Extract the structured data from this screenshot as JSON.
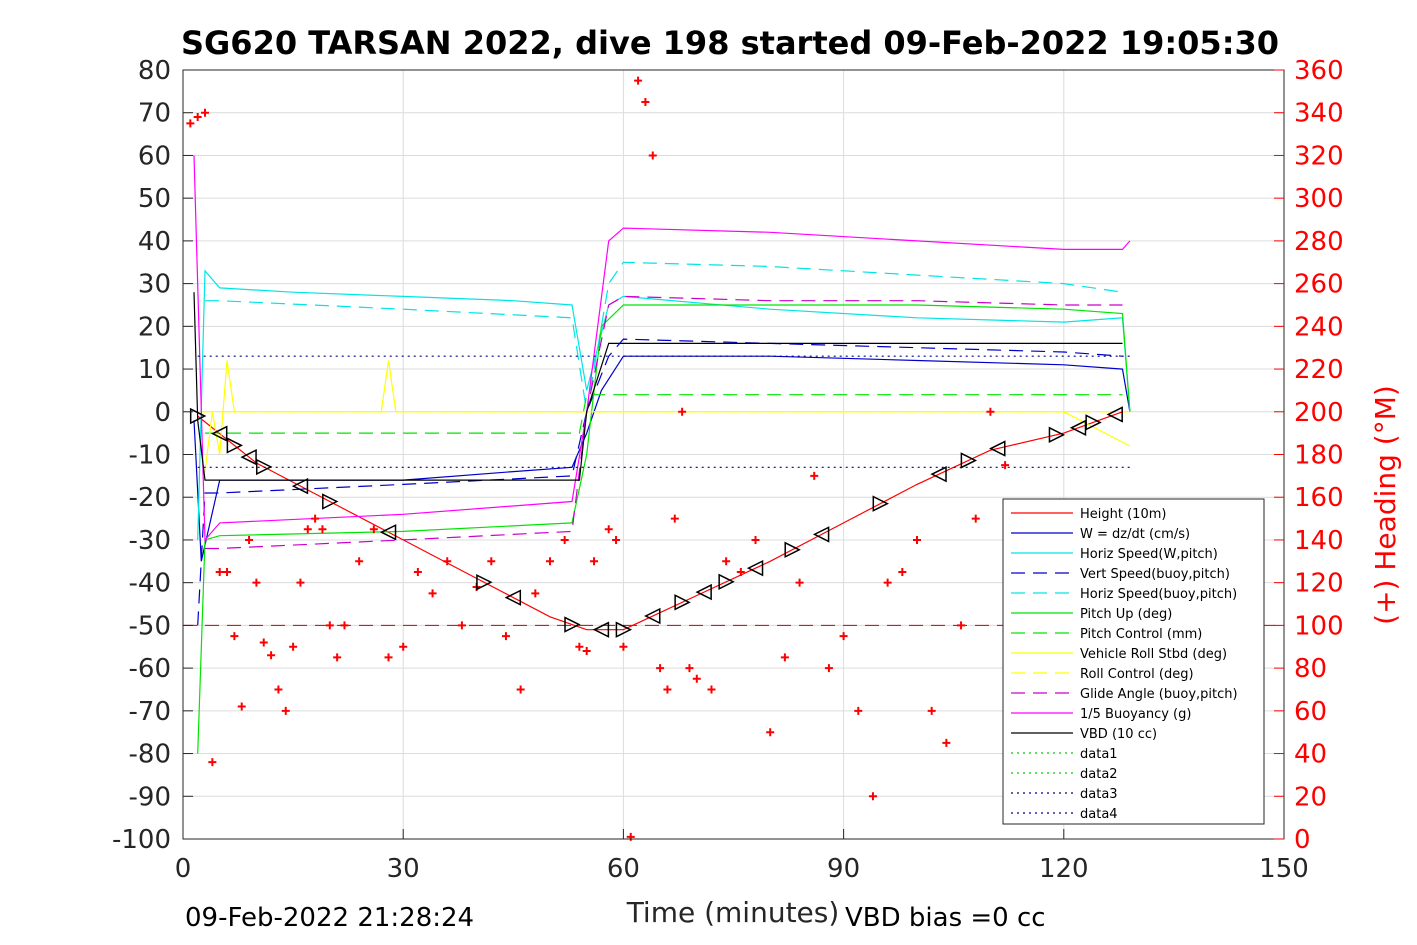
{
  "chart_data": {
    "type": "line",
    "title": "SG620 TARSAN 2022, dive 198 started 09-Feb-2022 19:05:30",
    "xlabel": "Time (minutes)",
    "ylabel_right": "(+) Heading (°M)",
    "xlim": [
      0,
      150
    ],
    "ylim": [
      -100,
      80
    ],
    "ylim_right": [
      0,
      360
    ],
    "x_ticks": [
      "0",
      "30",
      "60",
      "90",
      "120",
      "150"
    ],
    "y_ticks": [
      "80",
      "70",
      "60",
      "50",
      "40",
      "30",
      "20",
      "10",
      "0",
      "-10",
      "-20",
      "-30",
      "-40",
      "-50",
      "-60",
      "-70",
      "-80",
      "-90",
      "-100"
    ],
    "y_right_ticks": [
      "360",
      "340",
      "320",
      "300",
      "280",
      "260",
      "240",
      "220",
      "200",
      "180",
      "160",
      "140",
      "120",
      "100",
      "80",
      "60",
      "40",
      "20",
      "0"
    ],
    "grid": true,
    "legend_position": "bottom-right",
    "footer_left": "09-Feb-2022 21:28:24",
    "footer_right": "VBD bias =0 cc",
    "series": [
      {
        "name": "Height (10m)",
        "color": "#ff0000",
        "style": "solid",
        "x": [
          2,
          10,
          20,
          30,
          40,
          50,
          55,
          60,
          70,
          80,
          90,
          100,
          110,
          120,
          128
        ],
        "y": [
          -1,
          -12,
          -21,
          -30,
          -39,
          -48,
          -51,
          -51,
          -43,
          -35,
          -26,
          -17,
          -9,
          -5,
          0
        ]
      },
      {
        "name": "W = dz/dt (cm/s)",
        "color": "#0000cc",
        "style": "solid",
        "x": [
          1.5,
          2.5,
          5,
          15,
          30,
          45,
          53,
          55,
          57,
          60,
          80,
          100,
          120,
          128,
          129
        ],
        "y": [
          -2,
          -35,
          -16,
          -16,
          -16,
          -14,
          -13,
          -5,
          5,
          13,
          13,
          12,
          11,
          10,
          0
        ]
      },
      {
        "name": "Horiz Speed(W,pitch)",
        "color": "#00e5e5",
        "style": "solid",
        "x": [
          2,
          3,
          5,
          15,
          30,
          45,
          53,
          55,
          58,
          60,
          80,
          100,
          120,
          128,
          129
        ],
        "y": [
          -30,
          33,
          29,
          28,
          27,
          26,
          25,
          5,
          25,
          27,
          24,
          22,
          21,
          22,
          0
        ]
      },
      {
        "name": "Vert Speed(buoy,pitch)",
        "color": "#0000cc",
        "style": "dashed",
        "x": [
          2,
          3,
          5,
          30,
          53,
          55,
          58,
          60,
          80,
          100,
          120,
          128
        ],
        "y": [
          -50,
          -19,
          -19,
          -17,
          -15,
          0,
          13,
          17,
          16,
          15,
          14,
          13
        ]
      },
      {
        "name": "Horiz Speed(buoy,pitch)",
        "color": "#00e5e5",
        "style": "dashed",
        "x": [
          3,
          5,
          30,
          53,
          55,
          58,
          60,
          80,
          100,
          120,
          128
        ],
        "y": [
          26,
          26,
          24,
          22,
          0,
          30,
          35,
          34,
          32,
          30,
          28
        ]
      },
      {
        "name": "Pitch Up (deg)",
        "color": "#00e500",
        "style": "solid",
        "x": [
          2,
          3,
          5,
          30,
          53,
          55,
          57,
          60,
          80,
          100,
          120,
          128,
          129
        ],
        "y": [
          -80,
          -30,
          -29,
          -28,
          -26,
          -10,
          20,
          25,
          25,
          25,
          24,
          23,
          0
        ]
      },
      {
        "name": "Pitch Control (mm)",
        "color": "#00e500",
        "style": "dashed",
        "x": [
          3,
          54,
          55,
          128
        ],
        "y": [
          -5,
          -5,
          4,
          4
        ]
      },
      {
        "name": "Vehicle Roll Stbd (deg)",
        "color": "#ffff00",
        "style": "solid",
        "x": [
          3,
          4,
          5,
          6,
          7,
          8,
          9,
          20,
          27,
          28,
          29,
          30,
          40,
          48,
          50,
          60,
          70,
          80,
          90,
          100,
          110,
          120,
          129
        ],
        "y": [
          -14,
          0,
          -10,
          12,
          0,
          0,
          0,
          0,
          0,
          12,
          0,
          0,
          0,
          0,
          0,
          0,
          0,
          0,
          0,
          0,
          0,
          0,
          -8
        ]
      },
      {
        "name": "Roll Control (deg)",
        "color": "#ffff00",
        "style": "dashed",
        "x": [
          2,
          129
        ],
        "y": [
          0,
          0
        ]
      },
      {
        "name": "Glide Angle (buoy,pitch)",
        "color": "#cc00cc",
        "style": "dashed",
        "x": [
          3,
          5,
          30,
          53,
          55,
          58,
          60,
          80,
          100,
          120,
          128
        ],
        "y": [
          -32,
          -32,
          -30,
          -28,
          0,
          25,
          27,
          26,
          26,
          25,
          25
        ]
      },
      {
        "name": "1/5 Buoyancy (g)",
        "color": "#ff00ff",
        "style": "solid",
        "x": [
          1.5,
          3,
          5,
          30,
          53,
          55,
          58,
          60,
          80,
          100,
          120,
          128,
          129
        ],
        "y": [
          60,
          -30,
          -26,
          -24,
          -21,
          0,
          40,
          43,
          42,
          40,
          38,
          38,
          40
        ]
      },
      {
        "name": "VBD (10 cc)",
        "color": "#000000",
        "style": "solid",
        "x": [
          1.5,
          2,
          3,
          54,
          55,
          58,
          60,
          128
        ],
        "y": [
          28,
          -2,
          -16,
          -16,
          0,
          16,
          16,
          16
        ]
      },
      {
        "name": "data1",
        "color": "#00cc00",
        "style": "dotted",
        "x": [],
        "y": []
      },
      {
        "name": "data2",
        "color": "#00cc00",
        "style": "dotted",
        "x": [],
        "y": []
      },
      {
        "name": "data3",
        "color": "#000080",
        "style": "dotted",
        "x": [
          2,
          129
        ],
        "y": [
          13,
          13
        ]
      },
      {
        "name": "data4",
        "color": "#000080",
        "style": "dotted",
        "x": [
          2,
          129
        ],
        "y": [
          -13,
          -13
        ]
      }
    ],
    "reference_line": {
      "y": -50,
      "color": "#cc0000",
      "style": "dashed"
    },
    "turn_markers_x": [
      2,
      5,
      7,
      9,
      11,
      16,
      20,
      28,
      41,
      45,
      53,
      57,
      60,
      64,
      68,
      71,
      74,
      78,
      83,
      87,
      95,
      103,
      107,
      111,
      119,
      122,
      124,
      127
    ],
    "heading": {
      "color": "#ff0000",
      "axis": "right",
      "x": [
        1,
        2,
        3,
        4,
        5,
        6,
        7,
        8,
        9,
        10,
        11,
        12,
        13,
        14,
        15,
        16,
        17,
        18,
        19,
        20,
        21,
        22,
        24,
        26,
        28,
        30,
        32,
        34,
        36,
        38,
        40,
        42,
        44,
        46,
        48,
        50,
        52,
        54,
        55,
        56,
        58,
        59,
        60,
        61,
        62,
        63,
        64,
        65,
        66,
        67,
        68,
        69,
        70,
        72,
        74,
        76,
        78,
        80,
        82,
        84,
        86,
        88,
        90,
        92,
        94,
        96,
        98,
        100,
        102,
        104,
        106,
        108,
        110,
        112
      ],
      "y": [
        335,
        338,
        340,
        36,
        125,
        125,
        95,
        62,
        140,
        120,
        92,
        86,
        70,
        60,
        90,
        120,
        145,
        150,
        145,
        100,
        85,
        100,
        130,
        145,
        85,
        90,
        125,
        115,
        130,
        100,
        118,
        130,
        95,
        70,
        115,
        130,
        140,
        90,
        88,
        130,
        145,
        140,
        90,
        1,
        355,
        345,
        320,
        80,
        70,
        150,
        200,
        80,
        75,
        70,
        130,
        125,
        140,
        50,
        85,
        120,
        170,
        80,
        95,
        60,
        20,
        120,
        125,
        140,
        60,
        45,
        100,
        150,
        200,
        175
      ]
    }
  }
}
